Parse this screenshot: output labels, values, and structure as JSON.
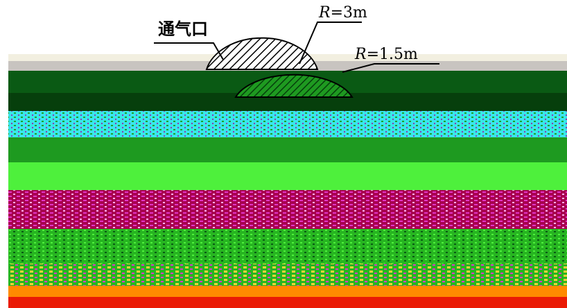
{
  "labels": {
    "vent": "通气口",
    "r_outer_symbol": "R",
    "r_outer_value": "=3m",
    "r_inner_symbol": "R",
    "r_inner_value": "=1.5m"
  },
  "colors": {
    "outline": "#000000",
    "band_light": "#f2efe0",
    "band_gray": "#c8c4c0",
    "dark_green": "#0a5a14",
    "deep_green": "#063f0c",
    "cyan": "#39e6ea",
    "green": "#1ea02a",
    "bright_green": "#4ef03c",
    "magenta": "#e236c9",
    "crimson": "#a8004e",
    "yellow": "#f2d23a",
    "mixed_green": "#27b521",
    "orange": "#ff8a00",
    "red": "#ea1a05"
  }
}
